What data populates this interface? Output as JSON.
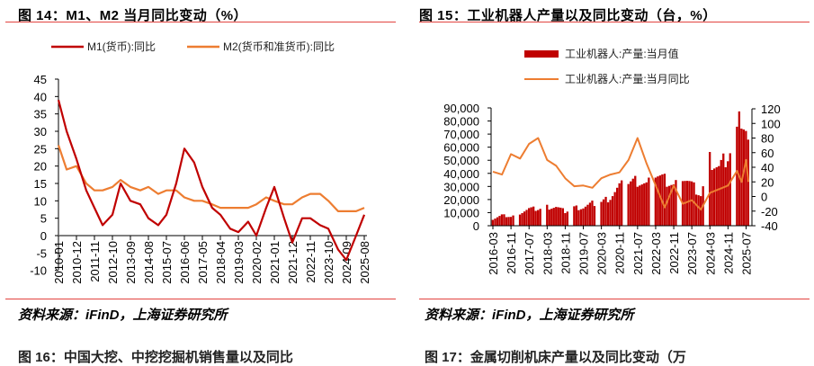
{
  "left_panel": {
    "title": "图 14：M1、M2 当月同比变动（%）",
    "source": "资料来源：iFinD，上海证券研究所",
    "next_title": "图 16：中国大挖、中挖挖掘机销售量以及同比"
  },
  "right_panel": {
    "title": "图 15：工业机器人产量以及同比变动（台，%）",
    "source": "资料来源：iFinD，上海证券研究所",
    "next_title": "图 17：金属切削机床产量以及同比变动（万"
  },
  "colors": {
    "m1": "#c00000",
    "m2": "#ed7d31",
    "bar": "#c00000",
    "yoy": "#ed7d31",
    "rule": "#e2433f",
    "axis": "#7f7f7f"
  },
  "chart_data": [
    {
      "type": "line",
      "title": "图 14：M1、M2 当月同比变动（%）",
      "xlabel": "",
      "ylabel": "",
      "ylim": [
        -10,
        45
      ],
      "yticks": [
        45,
        40,
        35,
        30,
        25,
        20,
        15,
        10,
        5,
        0,
        -5,
        -10
      ],
      "xticks": [
        "2010-01",
        "2010-12",
        "2011-11",
        "2012-10",
        "2013-09",
        "2014-08",
        "2015-07",
        "2016-06",
        "2017-05",
        "2018-04",
        "2019-03",
        "2020-02",
        "2021-01",
        "2021-12",
        "2022-11",
        "2023-10",
        "2024-09",
        "2025-08"
      ],
      "legend_position": "top",
      "grid": false,
      "x": [
        "2010-01",
        "2010-06",
        "2010-12",
        "2011-06",
        "2011-11",
        "2012-04",
        "2012-10",
        "2013-03",
        "2013-09",
        "2014-03",
        "2014-08",
        "2015-02",
        "2015-07",
        "2016-01",
        "2016-06",
        "2016-12",
        "2017-05",
        "2017-11",
        "2018-04",
        "2018-10",
        "2019-03",
        "2019-09",
        "2020-02",
        "2020-08",
        "2021-01",
        "2021-07",
        "2021-12",
        "2022-06",
        "2022-11",
        "2023-05",
        "2023-10",
        "2024-04",
        "2024-09",
        "2025-03",
        "2025-08"
      ],
      "series": [
        {
          "name": "M1(货币):同比",
          "values": [
            39,
            30,
            22,
            13,
            8,
            3,
            6,
            15,
            10,
            9,
            5,
            3,
            6,
            15,
            25,
            21,
            14,
            8,
            6,
            2,
            1,
            4,
            0,
            8,
            14,
            5,
            -2,
            5,
            5,
            3,
            2,
            -4,
            -7,
            0,
            6
          ]
        },
        {
          "name": "M2(货币和准货币):同比",
          "values": [
            26,
            19,
            20,
            15,
            13,
            13,
            14,
            16,
            14,
            13,
            14,
            12,
            13,
            13,
            11,
            10,
            10,
            9,
            8,
            8,
            8,
            8,
            9,
            11,
            10,
            9,
            9,
            11,
            12,
            12,
            10,
            7,
            7,
            7,
            8
          ]
        }
      ]
    },
    {
      "type": "bar",
      "title": "图 15：工业机器人产量以及同比变动（台，%）",
      "xlabel": "",
      "ylabel": "",
      "ylim": [
        0,
        90000
      ],
      "y2lim": [
        -40,
        120
      ],
      "yticks": [
        "90,000",
        "80,000",
        "70,000",
        "60,000",
        "50,000",
        "40,000",
        "30,000",
        "20,000",
        "10,000",
        "0"
      ],
      "y2ticks": [
        "120",
        "100",
        "80",
        "60",
        "40",
        "20",
        "0",
        "-20",
        "-40"
      ],
      "xticks": [
        "2016-03",
        "2016-11",
        "2017-07",
        "2018-03",
        "2018-11",
        "2019-07",
        "2020-03",
        "2020-11",
        "2021-07",
        "2022-03",
        "2022-11",
        "2023-07",
        "2024-03",
        "2024-11",
        "2025-07"
      ],
      "legend_position": "top",
      "grid": false,
      "x": [
        "2016-03",
        "2016-07",
        "2016-11",
        "2017-03",
        "2017-07",
        "2017-11",
        "2018-03",
        "2018-07",
        "2018-11",
        "2019-03",
        "2019-07",
        "2019-11",
        "2020-03",
        "2020-07",
        "2020-11",
        "2021-03",
        "2021-07",
        "2021-11",
        "2022-03",
        "2022-07",
        "2022-11",
        "2023-03",
        "2023-07",
        "2023-11",
        "2024-03",
        "2024-07",
        "2024-11",
        "2025-03",
        "2025-05",
        "2025-07",
        "2025-08"
      ],
      "series": [
        {
          "name": "工业机器人:产量:当月值",
          "type": "bar",
          "values": [
            5000,
            8000,
            7000,
            10000,
            13000,
            13000,
            14500,
            14500,
            11000,
            14000,
            14000,
            17000,
            18000,
            22000,
            30000,
            33000,
            35000,
            32000,
            40000,
            36000,
            32000,
            39000,
            32000,
            24000,
            50000,
            45000,
            55000,
            70000,
            85000,
            75000,
            65000
          ]
        },
        {
          "name": "工业机器人:产量:当月同比",
          "type": "line",
          "axis": "right",
          "values": [
            34,
            30,
            58,
            52,
            72,
            80,
            50,
            42,
            25,
            14,
            15,
            12,
            25,
            30,
            33,
            50,
            80,
            45,
            15,
            -15,
            15,
            -10,
            -5,
            -18,
            5,
            10,
            15,
            35,
            20,
            50,
            20
          ]
        }
      ]
    }
  ]
}
